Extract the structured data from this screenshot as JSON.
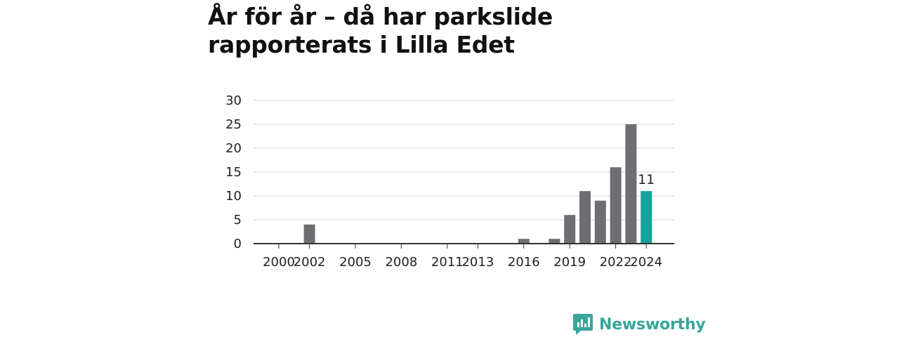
{
  "title": "År för år – då har parkslide rapporterats i Lilla Edet",
  "brand": {
    "name": "Newsworthy",
    "color": "#3aa59a",
    "icon": "newsworthy-logo-icon"
  },
  "colors": {
    "bar": "#6e6d72",
    "highlight": "#14a39a",
    "grid": "#d6d6d6",
    "axis": "#333333"
  },
  "chart_data": {
    "type": "bar",
    "title": "År för år – då har parkslide rapporterats i Lilla Edet",
    "xlabel": "",
    "ylabel": "",
    "ylim": [
      0,
      30
    ],
    "yticks": [
      0,
      5,
      10,
      15,
      20,
      25,
      30
    ],
    "grid": true,
    "categories": [
      2000,
      2001,
      2002,
      2003,
      2004,
      2005,
      2006,
      2007,
      2008,
      2009,
      2010,
      2011,
      2012,
      2013,
      2014,
      2015,
      2016,
      2017,
      2018,
      2019,
      2020,
      2021,
      2022,
      2023,
      2024
    ],
    "values": [
      0,
      0,
      4,
      0,
      0,
      0,
      0,
      0,
      0,
      0,
      0,
      0,
      0,
      0,
      0,
      0,
      1,
      0,
      1,
      6,
      11,
      9,
      16,
      25,
      11
    ],
    "xtick_labels": [
      "2000",
      "2002",
      "2005",
      "2008",
      "2011",
      "2013",
      "2016",
      "2019",
      "2022",
      "2024"
    ],
    "highlight": {
      "category": 2024,
      "label": "11"
    }
  }
}
